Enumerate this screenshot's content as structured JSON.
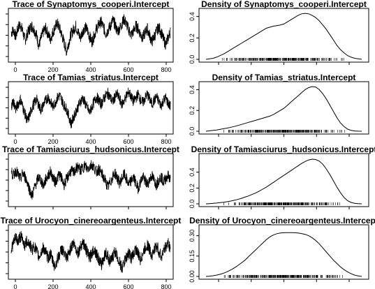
{
  "chart_data": [
    {
      "type": "line",
      "kind": "trace",
      "title": "Trace of Synaptomys_cooperi.Intercept",
      "x_ticks": [
        "0",
        "200",
        "400",
        "600",
        "800"
      ],
      "y_ticks": [],
      "series": [
        {
          "values": [
            -1.2,
            -1.0,
            -1.5,
            -0.8,
            -0.6,
            -1.1,
            -1.8,
            -1.3,
            -0.9,
            -0.7,
            -1.0,
            -1.4,
            -2.2,
            -1.6,
            -1.1,
            -0.9,
            -1.3,
            -1.7,
            -1.2,
            -0.8,
            -0.5,
            -0.9,
            -1.4,
            -2.0,
            -2.6,
            -1.9,
            -1.3,
            -1.0,
            -0.7,
            -1.2,
            -1.6,
            -1.1,
            -0.8,
            -1.0,
            -1.5,
            -1.9,
            -1.4,
            -0.9,
            -0.6,
            -0.4,
            -0.8,
            -1.3,
            -1.0,
            -0.7,
            -0.3,
            -0.6,
            -1.1,
            -0.9,
            -0.5,
            -0.2,
            -0.6,
            -1.0,
            -1.4,
            -1.1,
            -0.7,
            -0.9,
            -1.3,
            -1.6,
            -1.2,
            -0.9,
            -1.4,
            -1.9,
            -1.5,
            -1.1,
            -0.8,
            -1.2,
            -1.7,
            -2.1,
            -1.6,
            -1.1
          ]
        }
      ]
    },
    {
      "type": "line",
      "kind": "density",
      "title": "Density of Synaptomys_cooperi.Intercept",
      "x_ticks": [],
      "y_ticks": [
        "0.0",
        "0.2",
        "0.4"
      ],
      "ylim": [
        0,
        0.45
      ],
      "series": [
        {
          "values": [
            0.0,
            0.005,
            0.01,
            0.02,
            0.035,
            0.05,
            0.07,
            0.09,
            0.11,
            0.13,
            0.15,
            0.17,
            0.19,
            0.21,
            0.23,
            0.25,
            0.27,
            0.29,
            0.3,
            0.31,
            0.315,
            0.32,
            0.33,
            0.35,
            0.37,
            0.39,
            0.41,
            0.425,
            0.43,
            0.425,
            0.41,
            0.39,
            0.36,
            0.32,
            0.28,
            0.23,
            0.18,
            0.13,
            0.09,
            0.06,
            0.035,
            0.02,
            0.01,
            0.005,
            0.0
          ]
        }
      ]
    },
    {
      "type": "line",
      "kind": "trace",
      "title": "Trace of Tamias_striatus.Intercept",
      "x_ticks": [
        "0",
        "200",
        "400",
        "600",
        "800"
      ],
      "y_ticks": [],
      "series": [
        {
          "values": [
            -1.5,
            -1.2,
            -1.8,
            -1.4,
            -1.0,
            -1.6,
            -2.2,
            -2.8,
            -2.3,
            -1.7,
            -1.3,
            -1.0,
            -1.5,
            -1.9,
            -1.4,
            -1.1,
            -0.8,
            -1.2,
            -1.6,
            -1.3,
            -0.9,
            -0.7,
            -1.1,
            -1.5,
            -1.8,
            -2.4,
            -3.0,
            -2.5,
            -2.0,
            -1.6,
            -1.2,
            -0.9,
            -1.3,
            -1.7,
            -2.1,
            -1.6,
            -1.2,
            -0.8,
            -1.1,
            -1.4,
            -1.0,
            -0.7,
            -0.5,
            -0.9,
            -1.2,
            -0.8,
            -0.6,
            -1.0,
            -1.4,
            -1.1,
            -0.7,
            -0.4,
            -0.8,
            -1.2,
            -0.9,
            -0.6,
            -1.0,
            -1.3,
            -0.9,
            -0.6,
            -1.0,
            -1.4,
            -1.1,
            -0.8,
            -1.2,
            -1.5,
            -1.1,
            -0.9,
            -1.3,
            -1.6
          ]
        }
      ]
    },
    {
      "type": "line",
      "kind": "density",
      "title": "Density of Tamias_striatus.Intercept",
      "x_ticks": [],
      "y_ticks": [
        "0.0",
        "0.2",
        "0.4"
      ],
      "ylim": [
        0,
        0.45
      ],
      "series": [
        {
          "values": [
            0.0,
            0.004,
            0.008,
            0.012,
            0.018,
            0.024,
            0.03,
            0.038,
            0.046,
            0.055,
            0.065,
            0.075,
            0.085,
            0.095,
            0.105,
            0.115,
            0.125,
            0.135,
            0.145,
            0.16,
            0.18,
            0.2,
            0.22,
            0.25,
            0.28,
            0.31,
            0.34,
            0.37,
            0.4,
            0.42,
            0.43,
            0.425,
            0.4,
            0.36,
            0.31,
            0.25,
            0.19,
            0.13,
            0.08,
            0.045,
            0.02,
            0.008,
            0.003,
            0.001,
            0.0
          ]
        }
      ]
    },
    {
      "type": "line",
      "kind": "trace",
      "title": "Trace of Tamiasciurus_hudsonicus.Intercept",
      "x_ticks": [],
      "y_ticks": [],
      "series": [
        {
          "values": [
            -1.0,
            -1.3,
            -0.9,
            -1.2,
            -1.6,
            -1.1,
            -1.4,
            -1.8,
            -2.4,
            -2.9,
            -2.3,
            -1.8,
            -1.4,
            -1.7,
            -2.1,
            -1.6,
            -1.3,
            -1.0,
            -1.4,
            -1.8,
            -1.5,
            -1.2,
            -1.6,
            -2.0,
            -1.6,
            -1.2,
            -0.9,
            -1.1,
            -0.8,
            -0.6,
            -0.9,
            -0.7,
            -0.5,
            -0.8,
            -0.6,
            -0.4,
            -0.7,
            -1.0,
            -0.8,
            -1.1,
            -1.4,
            -1.8,
            -2.2,
            -1.8,
            -1.4,
            -1.1,
            -1.5,
            -1.9,
            -1.5,
            -1.2,
            -1.6,
            -2.0,
            -1.7,
            -1.4,
            -1.9,
            -2.3,
            -1.8,
            -1.4,
            -1.7,
            -2.0,
            -1.6,
            -1.3,
            -1.7,
            -2.0,
            -1.6,
            -1.4,
            -1.8,
            -1.5,
            -1.3,
            -1.6
          ]
        }
      ]
    },
    {
      "type": "line",
      "kind": "density",
      "title": "Density of Tamiasciurus_hudsonicus.Intercept",
      "x_ticks": [],
      "y_ticks": [
        "0.0",
        "0.2",
        "0.4"
      ],
      "ylim": [
        0,
        0.6
      ],
      "series": [
        {
          "values": [
            0.0,
            0.003,
            0.006,
            0.01,
            0.015,
            0.02,
            0.027,
            0.035,
            0.045,
            0.056,
            0.07,
            0.085,
            0.1,
            0.118,
            0.138,
            0.16,
            0.185,
            0.21,
            0.24,
            0.27,
            0.3,
            0.33,
            0.36,
            0.39,
            0.42,
            0.45,
            0.48,
            0.51,
            0.535,
            0.555,
            0.565,
            0.56,
            0.54,
            0.5,
            0.44,
            0.37,
            0.29,
            0.21,
            0.14,
            0.08,
            0.04,
            0.018,
            0.007,
            0.002,
            0.0
          ]
        }
      ]
    },
    {
      "type": "line",
      "kind": "trace",
      "title": "Trace of Urocyon_cinereoargenteus.Intercept",
      "x_ticks": [
        "0",
        "200",
        "400",
        "600",
        "800"
      ],
      "y_ticks": [],
      "series": [
        {
          "values": [
            -1.5,
            -1.0,
            -0.6,
            -0.9,
            -0.5,
            -0.8,
            -1.2,
            -0.8,
            -1.1,
            -1.5,
            -1.2,
            -1.6,
            -2.0,
            -1.7,
            -1.3,
            -1.7,
            -2.1,
            -1.8,
            -2.3,
            -2.7,
            -2.2,
            -1.8,
            -1.4,
            -1.8,
            -2.2,
            -1.7,
            -1.3,
            -1.0,
            -1.4,
            -1.7,
            -1.3,
            -0.9,
            -1.3,
            -1.7,
            -2.1,
            -1.7,
            -1.4,
            -1.8,
            -2.2,
            -2.6,
            -2.1,
            -1.7,
            -2.0,
            -2.4,
            -2.0,
            -1.6,
            -2.0,
            -2.4,
            -2.8,
            -2.4,
            -2.0,
            -1.7,
            -2.1,
            -1.8,
            -1.4,
            -1.8,
            -2.2,
            -1.8,
            -1.4,
            -1.1,
            -1.5,
            -1.9,
            -1.5,
            -1.2,
            -1.6,
            -2.0,
            -1.6,
            -1.3,
            -1.0,
            -1.4
          ]
        }
      ]
    },
    {
      "type": "line",
      "kind": "density",
      "title": "Density of Urocyon_cinereoargenteus.Intercept",
      "x_ticks": [],
      "y_ticks": [
        "0.00",
        "0.15",
        "0.30"
      ],
      "ylim": [
        0,
        0.36
      ],
      "series": [
        {
          "values": [
            0.0,
            0.002,
            0.005,
            0.01,
            0.016,
            0.024,
            0.035,
            0.048,
            0.063,
            0.08,
            0.1,
            0.12,
            0.145,
            0.17,
            0.195,
            0.22,
            0.245,
            0.27,
            0.29,
            0.305,
            0.315,
            0.32,
            0.322,
            0.323,
            0.323,
            0.322,
            0.32,
            0.316,
            0.31,
            0.3,
            0.285,
            0.265,
            0.24,
            0.21,
            0.18,
            0.15,
            0.12,
            0.095,
            0.07,
            0.05,
            0.034,
            0.02,
            0.01,
            0.004,
            0.0
          ]
        }
      ]
    }
  ]
}
